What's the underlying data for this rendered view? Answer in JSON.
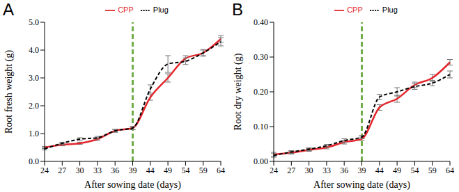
{
  "chart_data": [
    {
      "type": "line",
      "title": "A",
      "x_label": "After sowing date (days)",
      "y_label": "Root fresh weight (g)",
      "categories": [
        "24",
        "27",
        "30",
        "33",
        "36",
        "39",
        "44",
        "49",
        "54",
        "59",
        "64"
      ],
      "ylim": [
        0,
        5
      ],
      "yticks": [
        {
          "value": 0,
          "label": "0.0"
        },
        {
          "value": 1,
          "label": "1.0"
        },
        {
          "value": 2,
          "label": "2.0"
        },
        {
          "value": 3,
          "label": "3.0"
        },
        {
          "value": 4,
          "label": "4.0"
        },
        {
          "value": 5,
          "label": "5.0"
        }
      ],
      "grid": false,
      "legend": "top",
      "reference_line": {
        "x": "39",
        "color": "#70ad47",
        "line_style": "dashed"
      },
      "series": [
        {
          "name": "CPP",
          "color": "#e3262c",
          "line_style": "solid",
          "values": [
            0.5,
            0.6,
            0.65,
            0.8,
            1.1,
            1.2,
            2.3,
            3.0,
            3.7,
            3.9,
            4.4
          ],
          "errors": [
            0.04,
            0.04,
            0.04,
            0.05,
            0.05,
            0.06,
            0.1,
            0.15,
            0.1,
            0.1,
            0.12
          ]
        },
        {
          "name": "Plug",
          "color": "#000000",
          "line_style": "dashed",
          "values": [
            0.45,
            0.65,
            0.8,
            0.85,
            1.1,
            1.2,
            2.6,
            3.5,
            3.6,
            3.9,
            4.3
          ],
          "errors": [
            0.04,
            0.04,
            0.05,
            0.05,
            0.05,
            0.06,
            0.15,
            0.3,
            0.12,
            0.12,
            0.15
          ]
        }
      ]
    },
    {
      "type": "line",
      "title": "B",
      "x_label": "After sowing date (days)",
      "y_label": "Root dry weight (g)",
      "categories": [
        "24",
        "27",
        "30",
        "33",
        "36",
        "39",
        "44",
        "49",
        "54",
        "59",
        "64"
      ],
      "ylim": [
        0,
        0.4
      ],
      "yticks": [
        {
          "value": 0,
          "label": "0.00"
        },
        {
          "value": 0.1,
          "label": "0.10"
        },
        {
          "value": 0.2,
          "label": "0.20"
        },
        {
          "value": 0.3,
          "label": "0.30"
        },
        {
          "value": 0.4,
          "label": "0.40"
        }
      ],
      "grid": false,
      "legend": "top",
      "reference_line": {
        "x": "39",
        "color": "#70ad47",
        "line_style": "dashed"
      },
      "series": [
        {
          "name": "CPP",
          "color": "#e3262c",
          "line_style": "solid",
          "values": [
            0.02,
            0.025,
            0.033,
            0.04,
            0.055,
            0.065,
            0.155,
            0.18,
            0.22,
            0.24,
            0.285
          ],
          "errors": [
            0.006,
            0.004,
            0.004,
            0.004,
            0.005,
            0.005,
            0.008,
            0.01,
            0.008,
            0.01,
            0.008
          ]
        },
        {
          "name": "Plug",
          "color": "#000000",
          "line_style": "dashed",
          "values": [
            0.017,
            0.027,
            0.035,
            0.045,
            0.06,
            0.07,
            0.185,
            0.2,
            0.215,
            0.225,
            0.25
          ],
          "errors": [
            0.005,
            0.004,
            0.004,
            0.004,
            0.005,
            0.005,
            0.008,
            0.012,
            0.008,
            0.008,
            0.01
          ]
        }
      ]
    }
  ]
}
